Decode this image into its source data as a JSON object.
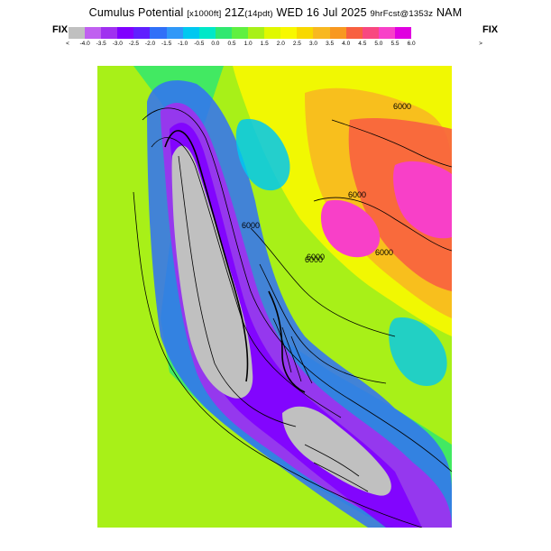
{
  "header": {
    "title_main": "Cumulus Potential",
    "title_units": "[x1000ft]",
    "title_time": "21Z",
    "title_local": "(14pdt)",
    "title_date": "WED 16 Jul 2025",
    "title_fcst": "9hrFcst@1353z",
    "title_model": "NAM"
  },
  "legend": {
    "fix_left": "FIX",
    "fix_right": "FIX",
    "lt_symbol": "<",
    "gt_symbol": ">",
    "tick_labels": [
      "-4.0",
      "-3.5",
      "-3.0",
      "-2.5",
      "-2.0",
      "-1.5",
      "-1.0",
      "-0.5",
      "0.0",
      "0.5",
      "1.0",
      "1.5",
      "2.0",
      "2.5",
      "3.0",
      "3.5",
      "4.0",
      "4.5",
      "5.0",
      "5.5",
      "6.0"
    ],
    "colors": [
      "#c0c0c0",
      "#c060f0",
      "#a030f0",
      "#8000ff",
      "#6020ff",
      "#3070f8",
      "#3098f8",
      "#00c8f0",
      "#00e8c8",
      "#30e870",
      "#60f040",
      "#a8f018",
      "#e0f800",
      "#f8f800",
      "#f8d800",
      "#f8b820",
      "#f89820",
      "#f86040",
      "#f84880",
      "#f840c8",
      "#e000e0"
    ]
  },
  "map": {
    "contour_labels": [
      "6000",
      "6000",
      "6000",
      "6000",
      "6000",
      "6000"
    ],
    "colors": {
      "land_base": "#a8f018",
      "grey_valley": "#c0c0c0",
      "purple": "#a030f0",
      "violet": "#8000ff",
      "blue": "#3070f8",
      "cyan": "#00c8f0",
      "green": "#30e870",
      "yellow": "#f8f800",
      "orange": "#f8b820",
      "red": "#f86040",
      "magenta": "#f840c8",
      "contour": "#000000"
    }
  }
}
